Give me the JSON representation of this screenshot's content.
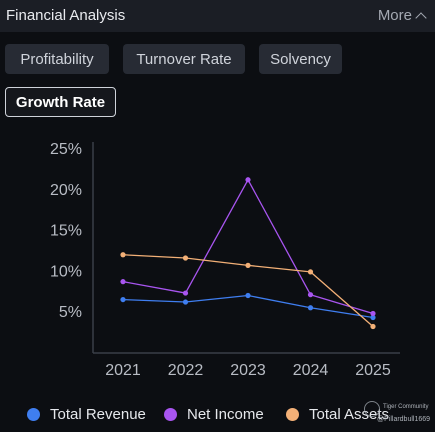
{
  "header": {
    "title": "Financial Analysis",
    "more_label": "More"
  },
  "tabs": [
    {
      "label": "Profitability",
      "active": false
    },
    {
      "label": "Turnover Rate",
      "active": false
    },
    {
      "label": "Solvency",
      "active": false
    },
    {
      "label": "Growth Rate",
      "active": true
    }
  ],
  "chart_data": {
    "type": "line",
    "x": [
      "2021",
      "2022",
      "2023",
      "2024",
      "2025"
    ],
    "yticks": [
      "25%",
      "20%",
      "15%",
      "10%",
      "5%"
    ],
    "ylim": [
      0,
      25
    ],
    "grid": false,
    "legend_position": "bottom",
    "series": [
      {
        "name": "Total Revenue",
        "color": "#3f7ef0",
        "values": [
          6.4,
          6.1,
          6.9,
          5.4,
          4.2
        ]
      },
      {
        "name": "Net Income",
        "color": "#a855f0",
        "values": [
          8.6,
          7.2,
          21.1,
          7.0,
          4.7
        ]
      },
      {
        "name": "Total Assets",
        "color": "#f3b077",
        "values": [
          11.9,
          11.5,
          10.6,
          9.8,
          3.1
        ]
      }
    ]
  },
  "watermark": {
    "top": "Tiger Community",
    "bottom": "@Pillardbull1669",
    "icon": "tiger-logo-icon"
  }
}
